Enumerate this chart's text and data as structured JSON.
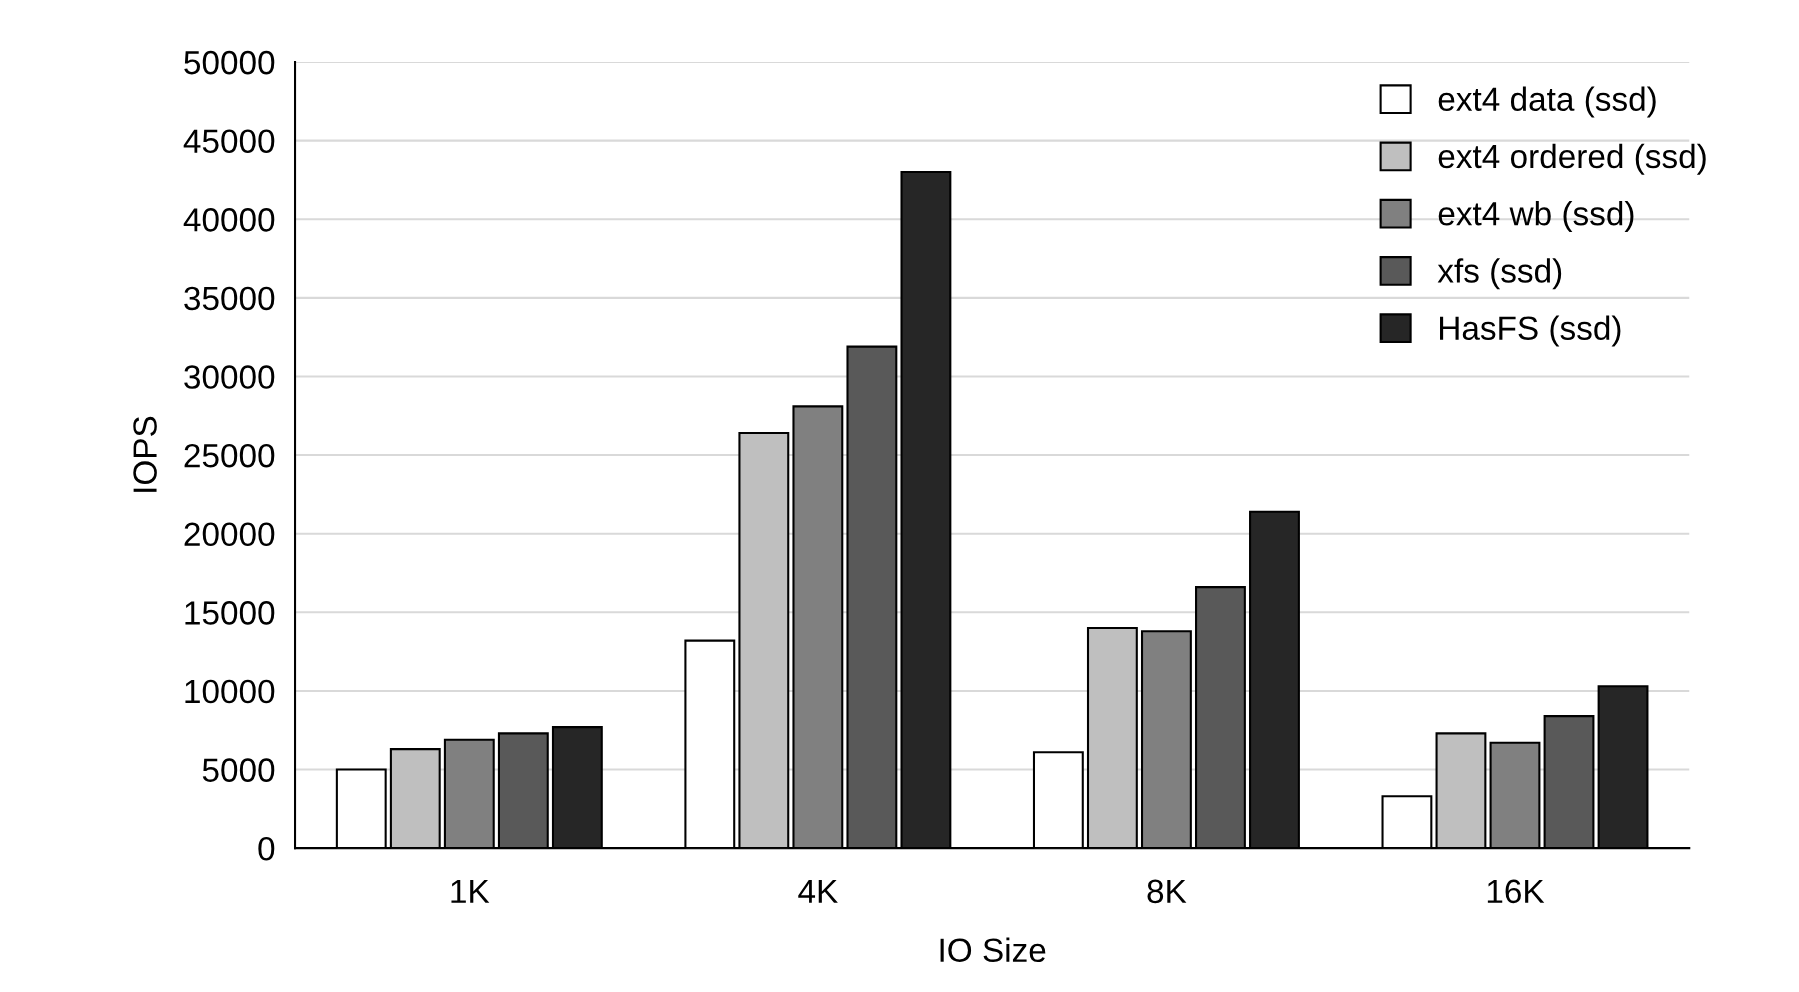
{
  "chart_data": {
    "type": "bar",
    "xlabel": "IO Size",
    "ylabel": "IOPS",
    "categories": [
      "1K",
      "4K",
      "8K",
      "16K"
    ],
    "series": [
      {
        "name": "ext4 data (ssd)",
        "color": "#ffffff",
        "values": [
          5000,
          13200,
          6100,
          3300
        ]
      },
      {
        "name": "ext4 ordered (ssd)",
        "color": "#bfbfbf",
        "values": [
          6300,
          26400,
          14000,
          7300
        ]
      },
      {
        "name": "ext4 wb (ssd)",
        "color": "#808080",
        "values": [
          6900,
          28100,
          13800,
          6700
        ]
      },
      {
        "name": "xfs (ssd)",
        "color": "#595959",
        "values": [
          7300,
          31900,
          16600,
          8400
        ]
      },
      {
        "name": "HasFS (ssd)",
        "color": "#262626",
        "values": [
          7700,
          43000,
          21400,
          10300
        ]
      }
    ],
    "ylim": [
      0,
      50000
    ],
    "yticks": [
      0,
      5000,
      10000,
      15000,
      20000,
      25000,
      30000,
      35000,
      40000,
      45000,
      50000
    ],
    "grid": "y",
    "legend": "top right"
  }
}
